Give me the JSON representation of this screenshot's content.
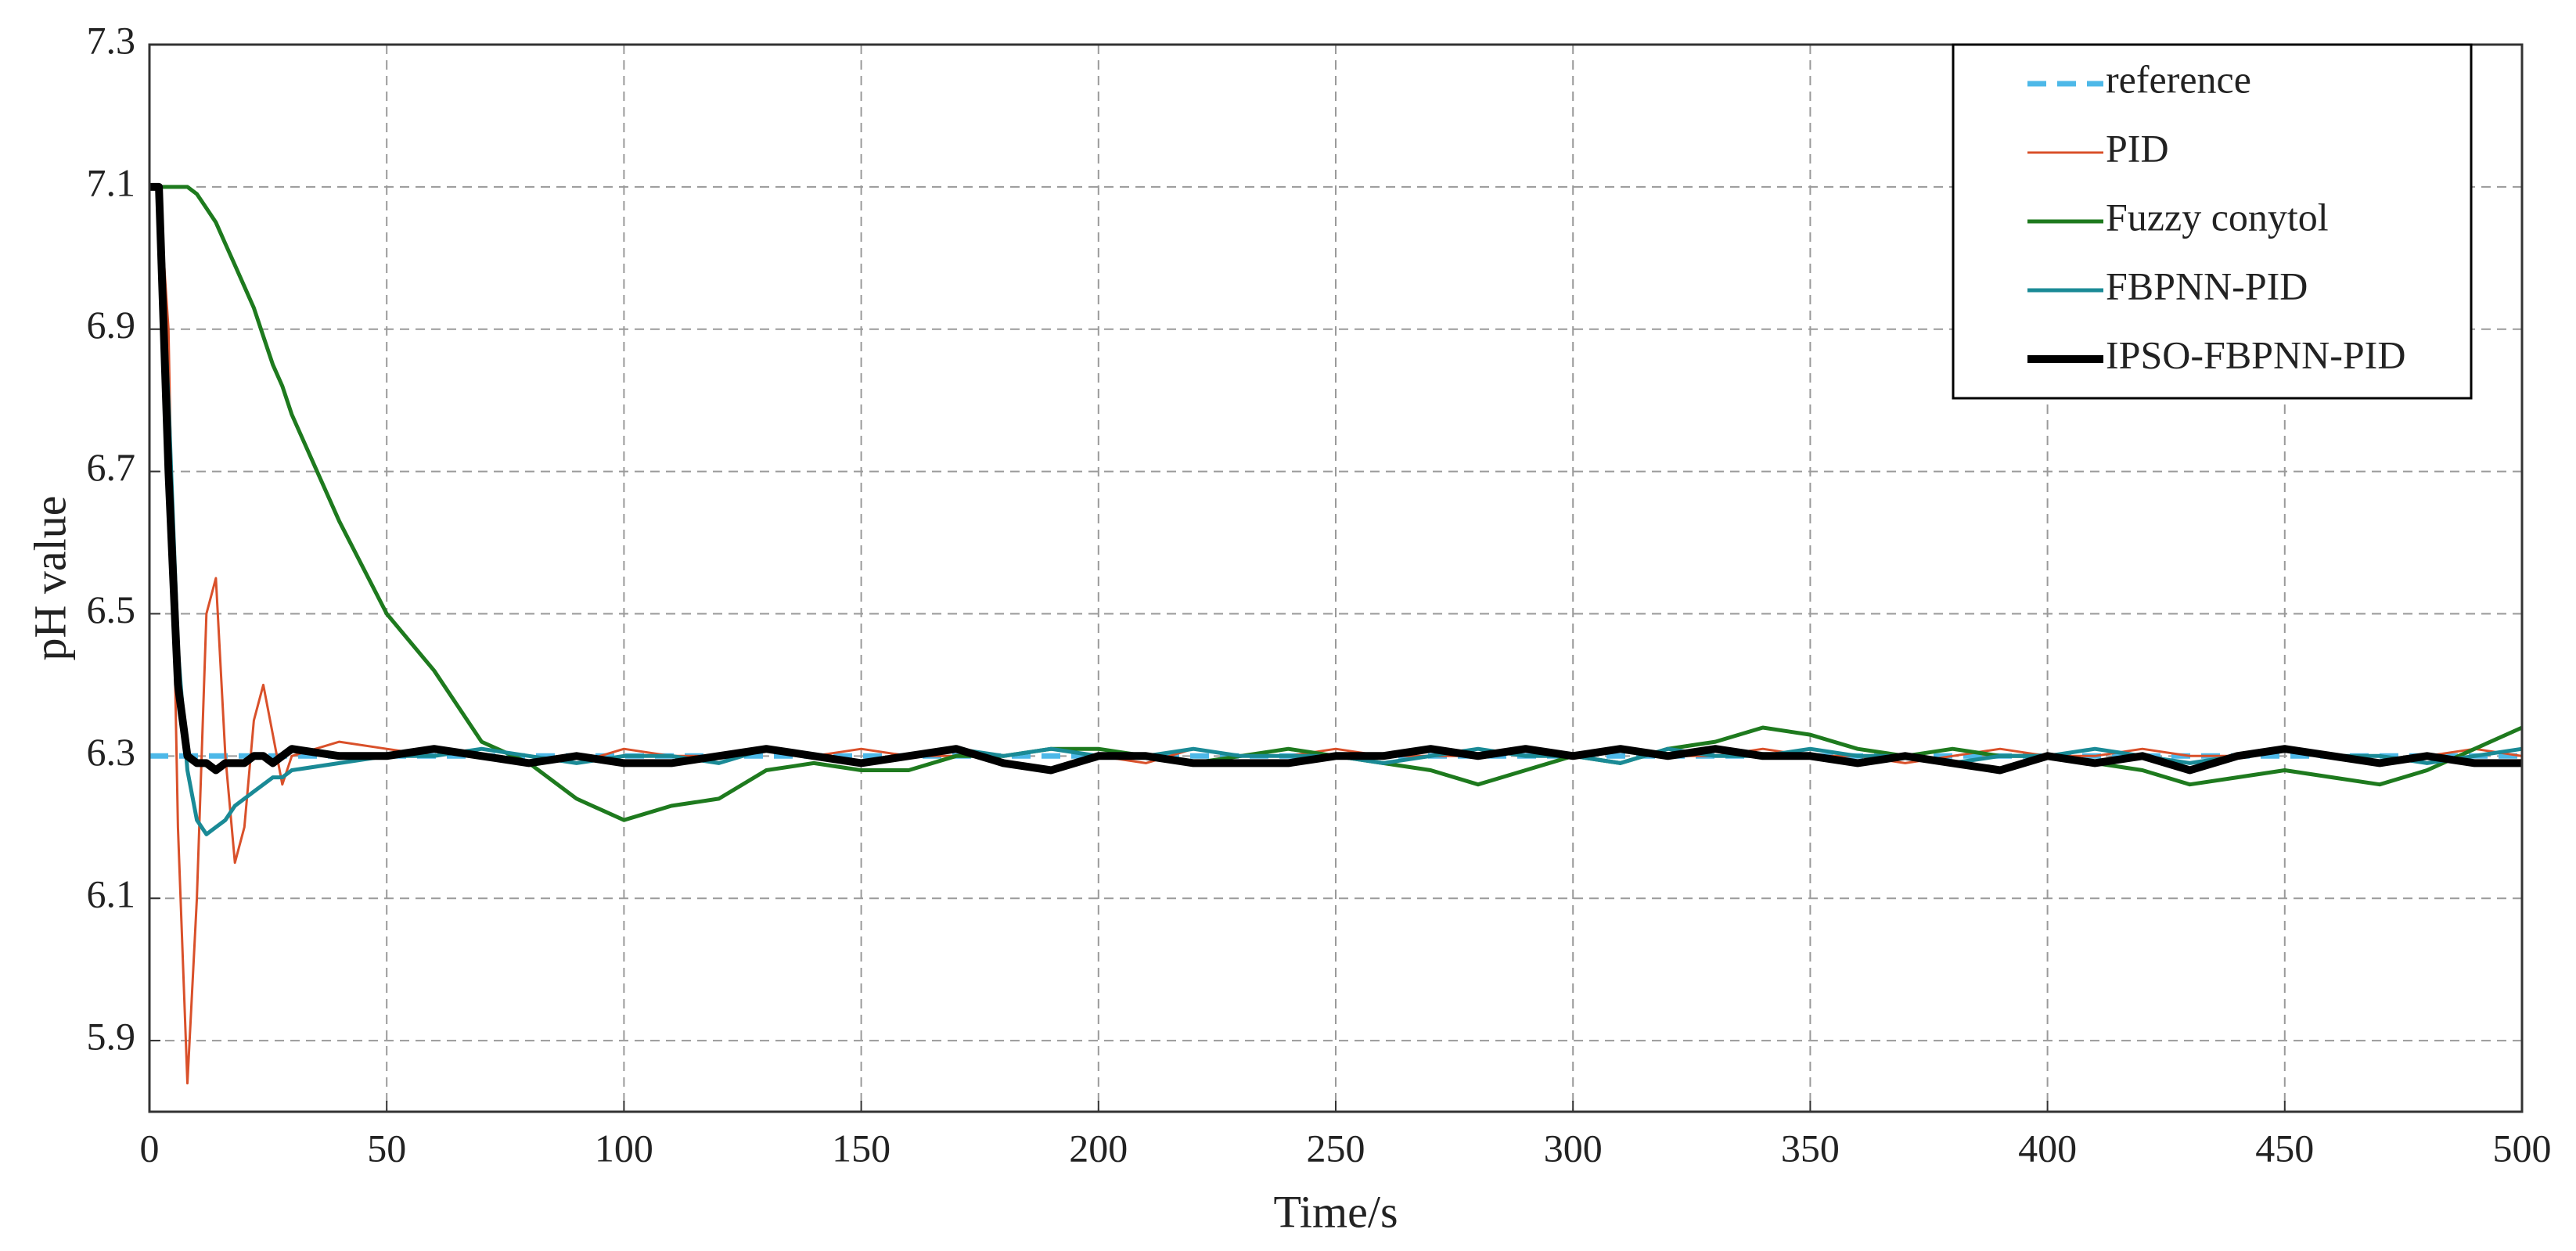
{
  "chart_data": {
    "type": "line",
    "xlabel": "Time/s",
    "ylabel": "pH value",
    "xlim": [
      0,
      500
    ],
    "ylim": [
      5.8,
      7.3
    ],
    "xticks": [
      0,
      50,
      100,
      150,
      200,
      250,
      300,
      350,
      400,
      450,
      500
    ],
    "yticks": [
      5.9,
      6.1,
      6.3,
      6.5,
      6.7,
      6.9,
      7.1,
      7.3
    ],
    "grid": true,
    "legend": "upper right",
    "x": [
      0,
      2,
      4,
      6,
      8,
      10,
      12,
      14,
      16,
      18,
      20,
      22,
      24,
      26,
      28,
      30,
      40,
      50,
      60,
      70,
      80,
      90,
      100,
      110,
      120,
      130,
      140,
      150,
      160,
      170,
      180,
      190,
      200,
      210,
      220,
      230,
      240,
      250,
      260,
      270,
      280,
      290,
      300,
      310,
      320,
      330,
      340,
      350,
      360,
      370,
      380,
      390,
      400,
      410,
      420,
      430,
      440,
      450,
      460,
      470,
      480,
      490,
      500
    ],
    "series": [
      {
        "name": "reference",
        "color": "#4db8e8",
        "dash": true,
        "x": [
          0,
          500
        ],
        "values": [
          6.3,
          6.3
        ]
      },
      {
        "name": "PID",
        "color": "#d9502a",
        "values": [
          7.1,
          7.1,
          6.9,
          6.2,
          5.84,
          6.1,
          6.5,
          6.55,
          6.3,
          6.15,
          6.2,
          6.35,
          6.4,
          6.33,
          6.26,
          6.3,
          6.32,
          6.31,
          6.3,
          6.31,
          6.3,
          6.29,
          6.31,
          6.3,
          6.3,
          6.31,
          6.3,
          6.31,
          6.3,
          6.3,
          6.3,
          6.31,
          6.3,
          6.29,
          6.31,
          6.3,
          6.3,
          6.31,
          6.3,
          6.3,
          6.3,
          6.31,
          6.3,
          6.31,
          6.3,
          6.3,
          6.31,
          6.3,
          6.3,
          6.29,
          6.3,
          6.31,
          6.3,
          6.3,
          6.31,
          6.3,
          6.3,
          6.31,
          6.3,
          6.29,
          6.3,
          6.31,
          6.3
        ]
      },
      {
        "name": "Fuzzy conytol",
        "color": "#1e7a1e",
        "values": [
          7.1,
          7.1,
          7.1,
          7.1,
          7.1,
          7.09,
          7.07,
          7.05,
          7.02,
          6.99,
          6.96,
          6.93,
          6.89,
          6.85,
          6.82,
          6.78,
          6.63,
          6.5,
          6.42,
          6.32,
          6.29,
          6.24,
          6.21,
          6.23,
          6.24,
          6.28,
          6.29,
          6.28,
          6.28,
          6.3,
          6.3,
          6.31,
          6.31,
          6.3,
          6.29,
          6.3,
          6.31,
          6.3,
          6.29,
          6.28,
          6.26,
          6.28,
          6.3,
          6.29,
          6.31,
          6.32,
          6.34,
          6.33,
          6.31,
          6.3,
          6.31,
          6.3,
          6.3,
          6.29,
          6.28,
          6.26,
          6.27,
          6.28,
          6.27,
          6.26,
          6.28,
          6.31,
          6.34
        ]
      },
      {
        "name": "FBPNN-PID",
        "color": "#1a8a96",
        "values": [
          7.1,
          7.1,
          6.8,
          6.45,
          6.28,
          6.21,
          6.19,
          6.2,
          6.21,
          6.23,
          6.24,
          6.25,
          6.26,
          6.27,
          6.27,
          6.28,
          6.29,
          6.3,
          6.3,
          6.31,
          6.3,
          6.29,
          6.3,
          6.3,
          6.29,
          6.31,
          6.3,
          6.29,
          6.3,
          6.31,
          6.3,
          6.31,
          6.3,
          6.3,
          6.31,
          6.3,
          6.3,
          6.3,
          6.29,
          6.3,
          6.31,
          6.3,
          6.3,
          6.29,
          6.31,
          6.3,
          6.3,
          6.31,
          6.3,
          6.3,
          6.29,
          6.3,
          6.3,
          6.31,
          6.3,
          6.29,
          6.3,
          6.31,
          6.3,
          6.3,
          6.29,
          6.3,
          6.31
        ]
      },
      {
        "name": "IPSO-FBPNN-PID",
        "color": "#000000",
        "values": [
          7.1,
          7.1,
          6.7,
          6.4,
          6.3,
          6.29,
          6.29,
          6.28,
          6.29,
          6.29,
          6.29,
          6.3,
          6.3,
          6.29,
          6.3,
          6.31,
          6.3,
          6.3,
          6.31,
          6.3,
          6.29,
          6.3,
          6.29,
          6.29,
          6.3,
          6.31,
          6.3,
          6.29,
          6.3,
          6.31,
          6.29,
          6.28,
          6.3,
          6.3,
          6.29,
          6.29,
          6.29,
          6.3,
          6.3,
          6.31,
          6.3,
          6.31,
          6.3,
          6.31,
          6.3,
          6.31,
          6.3,
          6.3,
          6.29,
          6.3,
          6.29,
          6.28,
          6.3,
          6.29,
          6.3,
          6.28,
          6.3,
          6.31,
          6.3,
          6.29,
          6.3,
          6.29,
          6.29
        ]
      }
    ]
  }
}
